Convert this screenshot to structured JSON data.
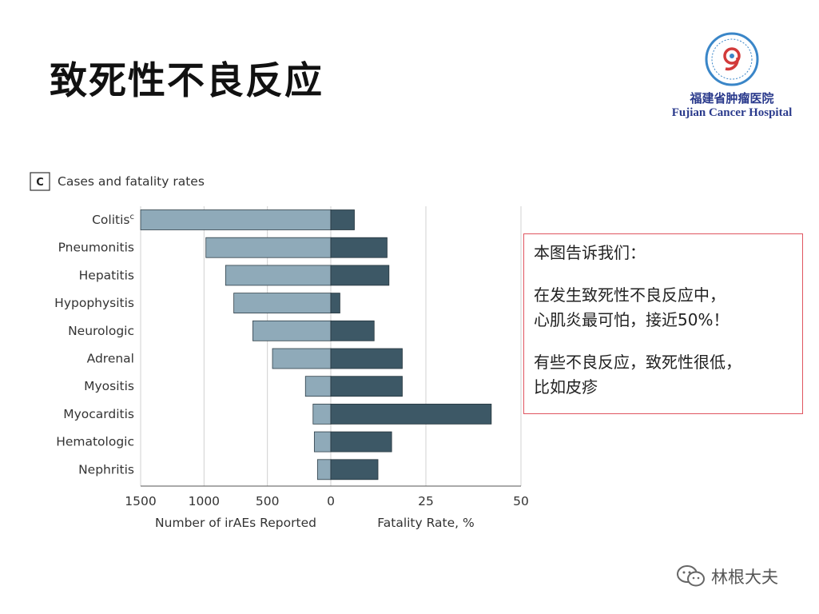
{
  "slide": {
    "title": "致死性不良反应"
  },
  "logo": {
    "hospital_cn": "福建省肿瘤医院",
    "hospital_en": "Fujian Cancer Hospital"
  },
  "note": {
    "line1": "本图告诉我们：",
    "line2": "在发生致死性不良反应中，",
    "line3": "心肌炎最可怕，接近50%！",
    "line4": "有些不良反应，致死性很低，",
    "line5": "比如皮疹"
  },
  "watermark": {
    "text": "林根大夫"
  },
  "colors": {
    "left_bar": "#8faab9",
    "right_bar": "#3d5866",
    "grid": "#d0d0d0",
    "box_border": "#e05560"
  },
  "chart_data": {
    "type": "bar",
    "panel_letter": "C",
    "title": "Cases and fatality rates",
    "categories": [
      "Colitis",
      "Pneumonitis",
      "Hepatitis",
      "Hypophysitis",
      "Neurologic",
      "Adrenal",
      "Myositis",
      "Myocarditis",
      "Hematologic",
      "Nephritis"
    ],
    "category_superscripts": [
      "c",
      "",
      "",
      "",
      "",
      "",
      "",
      "",
      "",
      ""
    ],
    "series": [
      {
        "name": "Number of irAEs Reported",
        "values": [
          1500,
          985,
          830,
          765,
          615,
          460,
          200,
          140,
          130,
          105
        ]
      },
      {
        "name": "Fatality Rate, %",
        "values": [
          6.2,
          14.8,
          15.3,
          2.4,
          11.4,
          18.8,
          18.8,
          42.2,
          16.0,
          12.4
        ]
      }
    ],
    "left_axis": {
      "label": "Number of irAEs Reported",
      "ticks": [
        "1500",
        "1000",
        "500",
        "0"
      ],
      "range": [
        0,
        1500
      ]
    },
    "right_axis": {
      "label": "Fatality Rate, %",
      "ticks": [
        "25",
        "50"
      ],
      "range": [
        0,
        50
      ]
    },
    "grid": true
  }
}
